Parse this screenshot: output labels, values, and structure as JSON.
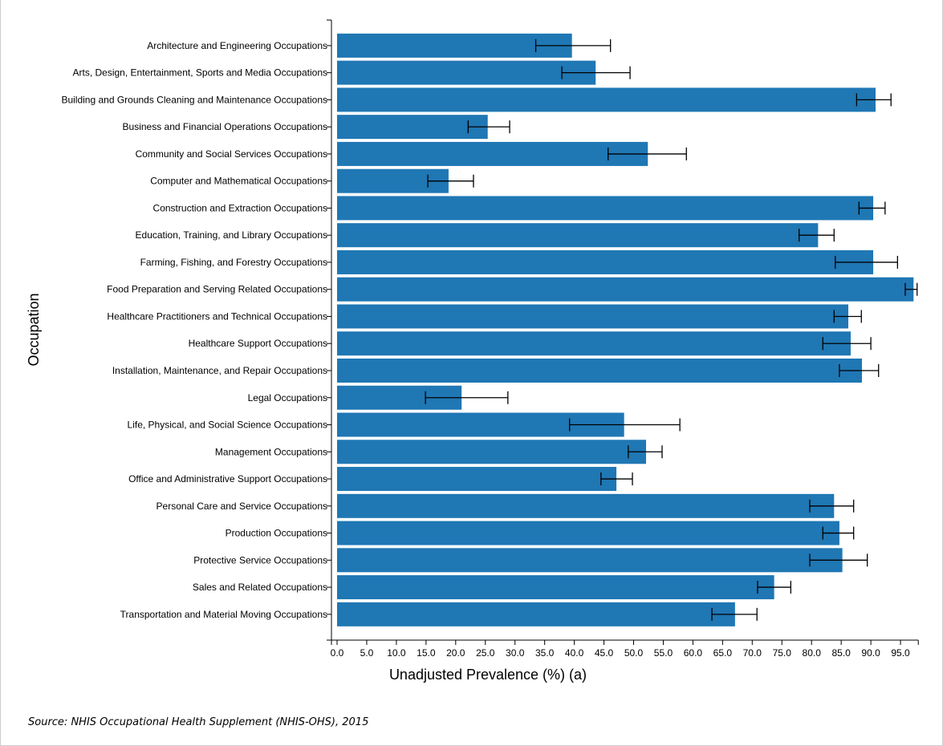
{
  "chart_data": {
    "type": "bar",
    "orientation": "horizontal",
    "xlabel": "Unadjusted Prevalence (%) (a)",
    "ylabel": "Occupation",
    "xlim": [
      0,
      98
    ],
    "xticks": [
      "0.0",
      "5.0",
      "10.0",
      "15.0",
      "20.0",
      "25.0",
      "30.0",
      "35.0",
      "40.0",
      "45.0",
      "50.0",
      "55.0",
      "60.0",
      "65.0",
      "70.0",
      "75.0",
      "80.0",
      "85.0",
      "90.0",
      "95.0"
    ],
    "grid": false,
    "bar_color": "#1f77b4",
    "categories": [
      "Architecture and Engineering Occupations",
      "Arts, Design, Entertainment, Sports and Media Occupations",
      "Building and Grounds Cleaning and Maintenance Occupations",
      "Business and Financial Operations Occupations",
      "Community and Social Services Occupations",
      "Computer and Mathematical Occupations",
      "Construction and Extraction Occupations",
      "Education, Training, and Library Occupations",
      "Farming, Fishing, and Forestry Occupations",
      "Food Preparation and Serving Related Occupations",
      "Healthcare Practitioners and Technical Occupations",
      "Healthcare Support Occupations",
      "Installation, Maintenance, and Repair Occupations",
      "Legal Occupations",
      "Life, Physical, and Social Science Occupations",
      "Management Occupations",
      "Office and Administrative Support Occupations",
      "Personal Care and Service Occupations",
      "Production Occupations",
      "Protective Service Occupations",
      "Sales and Related Occupations",
      "Transportation and Material Moving Occupations"
    ],
    "values": [
      39.6,
      43.6,
      90.8,
      25.4,
      52.4,
      18.8,
      90.4,
      81.1,
      90.4,
      97.2,
      86.2,
      86.6,
      88.5,
      21.0,
      48.4,
      52.1,
      47.1,
      83.8,
      84.7,
      85.2,
      73.7,
      67.1
    ],
    "ci_low": [
      33.5,
      37.9,
      87.6,
      22.1,
      45.7,
      15.3,
      88.0,
      77.9,
      84.0,
      95.8,
      83.8,
      81.9,
      84.7,
      14.9,
      39.2,
      49.1,
      44.5,
      79.7,
      81.9,
      79.7,
      70.9,
      63.2
    ],
    "ci_high": [
      46.1,
      49.4,
      93.4,
      29.1,
      58.9,
      23.0,
      92.4,
      83.8,
      94.5,
      97.8,
      88.4,
      90.0,
      91.3,
      28.8,
      57.8,
      54.8,
      49.8,
      87.1,
      87.1,
      89.4,
      76.5,
      70.8
    ]
  },
  "source": "Source: NHIS Occupational Health Supplement (NHIS-OHS), 2015"
}
